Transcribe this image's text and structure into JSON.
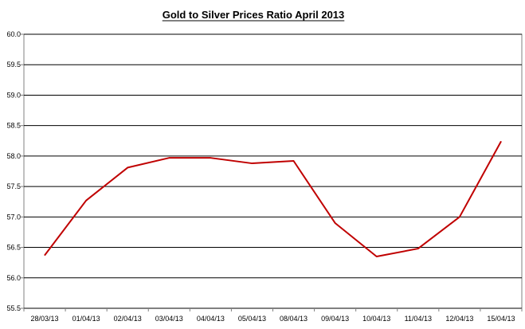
{
  "chart_data": {
    "type": "line",
    "title": "Gold to Silver Prices Ratio April  2013",
    "xlabel": "",
    "ylabel": "",
    "categories": [
      "28/03/13",
      "01/04/13",
      "02/04/13",
      "03/04/13",
      "04/04/13",
      "05/04/13",
      "08/04/13",
      "09/04/13",
      "10/04/13",
      "11/04/13",
      "12/04/13",
      "15/04/13"
    ],
    "series": [
      {
        "values": [
          56.37,
          57.27,
          57.81,
          57.97,
          57.97,
          57.88,
          57.92,
          56.9,
          56.35,
          56.48,
          57.0,
          58.24
        ],
        "color": "#c00000"
      }
    ],
    "ylim": [
      55.5,
      60.0
    ],
    "yticks": [
      "55.5",
      "56.0",
      "56.5",
      "57.0",
      "57.5",
      "58.0",
      "58.5",
      "59.0",
      "59.5",
      "60.0"
    ],
    "grid": true,
    "legend": "none"
  }
}
